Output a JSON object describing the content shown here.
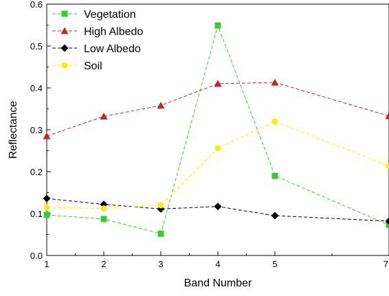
{
  "chart_data": {
    "type": "line",
    "title": "",
    "xlabel": "Band Number",
    "ylabel": "Reflectance",
    "x": [
      1,
      2,
      3,
      4,
      5,
      7
    ],
    "xtick_labels": [
      "1",
      "2",
      "3",
      "4",
      "5",
      "7"
    ],
    "ylim": [
      0.0,
      0.6
    ],
    "yticks": [
      0.0,
      0.1,
      0.2,
      0.3,
      0.4,
      0.5,
      0.6
    ],
    "ytick_labels": [
      "0.0",
      "0.1",
      "0.2",
      "0.3",
      "0.4",
      "0.5",
      "0.6"
    ],
    "grid": false,
    "legend_position": "top-left",
    "series": [
      {
        "name": "Vegetation",
        "color": "#33cc33",
        "marker": "square",
        "values": [
          0.097,
          0.087,
          0.052,
          0.549,
          0.19,
          0.073
        ]
      },
      {
        "name": "High Albedo",
        "color": "#cc2222",
        "marker": "triangle",
        "values": [
          0.285,
          0.332,
          0.358,
          0.41,
          0.413,
          0.333
        ]
      },
      {
        "name": "Low Albedo",
        "color": "#000000",
        "marker": "diamond",
        "values": [
          0.136,
          0.122,
          0.111,
          0.117,
          0.095,
          0.082
        ]
      },
      {
        "name": "Soil",
        "color": "#ffee00",
        "marker": "circle",
        "values": [
          0.115,
          0.112,
          0.12,
          0.256,
          0.32,
          0.214
        ]
      }
    ]
  }
}
